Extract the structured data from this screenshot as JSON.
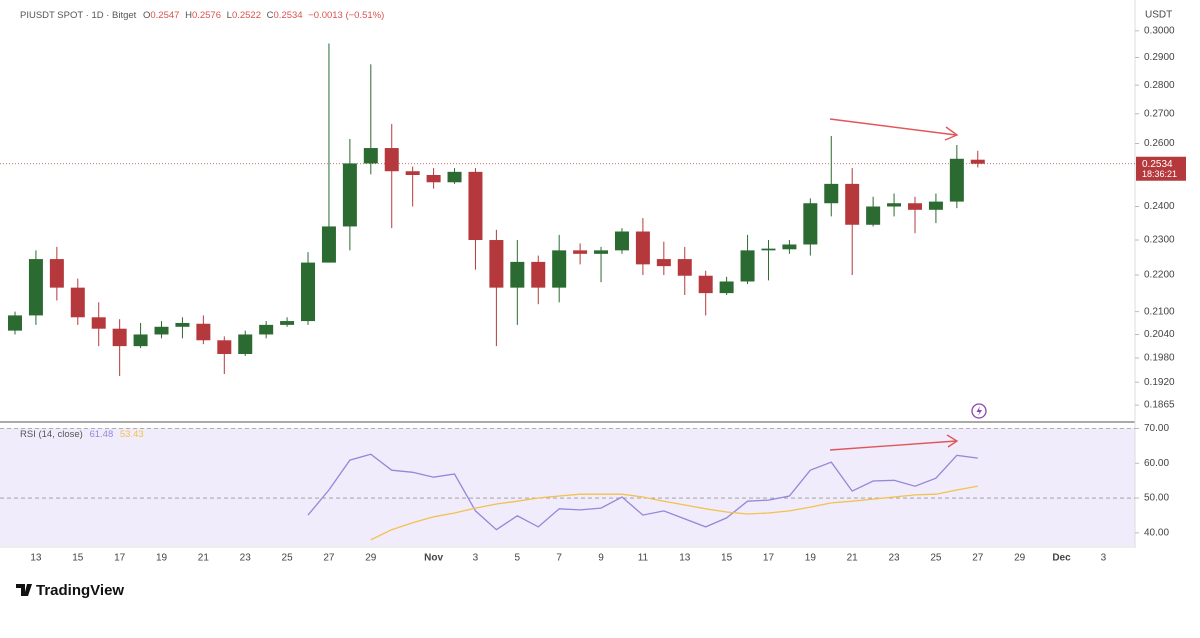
{
  "chart_data": [
    {
      "type": "candlestick",
      "title": "PIUSDT SPOT · 1D · Bitget",
      "ohlc_labels": [
        "O",
        "H",
        "L",
        "C"
      ],
      "change": "−0.0013 (−0.51%)",
      "countdown": "18:36:21",
      "y_axis_label": "USDT",
      "up_color": "#2b6a30",
      "down_color": "#b5393c",
      "log_scale": true,
      "ylim": [
        0.183,
        0.31
      ],
      "yticks": [
        {
          "value": 0.3,
          "label": "0.3000"
        },
        {
          "value": 0.29,
          "label": "0.2900"
        },
        {
          "value": 0.28,
          "label": "0.2800"
        },
        {
          "value": 0.27,
          "label": "0.2700"
        },
        {
          "value": 0.26,
          "label": "0.2600"
        },
        {
          "value": 0.24,
          "label": "0.2400"
        },
        {
          "value": 0.23,
          "label": "0.2300"
        },
        {
          "value": 0.22,
          "label": "0.2200"
        },
        {
          "value": 0.21,
          "label": "0.2100"
        },
        {
          "value": 0.204,
          "label": "0.2040"
        },
        {
          "value": 0.198,
          "label": "0.1980"
        },
        {
          "value": 0.192,
          "label": "0.1920"
        },
        {
          "value": 0.1865,
          "label": "0.1865"
        }
      ],
      "categories": [
        null,
        "13",
        null,
        "15",
        null,
        "17",
        null,
        "19",
        null,
        "21",
        null,
        "23",
        null,
        "25",
        null,
        "27",
        null,
        "29",
        null,
        null,
        "Nov",
        null,
        "3",
        null,
        "5",
        null,
        "7",
        null,
        "9",
        null,
        "11",
        null,
        "13",
        null,
        "15",
        null,
        "17",
        null,
        "19",
        null,
        "21",
        null,
        "23",
        null,
        "25",
        null,
        "27",
        null,
        "29",
        null,
        "Dec",
        null,
        "3"
      ],
      "open": [
        0.205,
        0.209,
        0.2245,
        0.2165,
        0.2085,
        0.2055,
        0.201,
        0.204,
        0.206,
        0.2068,
        0.2025,
        0.199,
        0.204,
        0.2065,
        0.2075,
        0.2235,
        0.234,
        0.2535,
        0.2585,
        0.251,
        0.2498,
        0.2475,
        0.2508,
        0.23,
        0.2165,
        0.2237,
        0.2165,
        0.227,
        0.226,
        0.227,
        0.2325,
        0.2245,
        0.2245,
        0.2198,
        0.215,
        0.2182,
        0.227,
        0.2273,
        0.2287,
        0.241,
        0.247,
        0.2345,
        0.24,
        0.241,
        0.239,
        0.2415,
        0.2547,
        null,
        null,
        null,
        null,
        null,
        null
      ],
      "high": [
        0.21,
        0.227,
        0.228,
        0.219,
        0.2125,
        0.208,
        0.207,
        0.2075,
        0.2085,
        0.209,
        0.2035,
        0.205,
        0.2075,
        0.2085,
        0.2265,
        0.2952,
        0.2615,
        0.2875,
        0.2665,
        0.2525,
        0.252,
        0.252,
        0.252,
        0.233,
        0.23,
        0.2255,
        0.2315,
        0.229,
        0.228,
        0.2335,
        0.2365,
        0.2295,
        0.228,
        0.2212,
        0.2195,
        0.2315,
        0.23,
        0.23,
        0.2425,
        0.2625,
        0.252,
        0.243,
        0.244,
        0.243,
        0.244,
        0.2595,
        0.2576,
        null,
        null,
        null,
        null,
        null,
        null
      ],
      "low": [
        0.204,
        0.2065,
        0.213,
        0.2065,
        0.201,
        0.1935,
        0.2005,
        0.203,
        0.203,
        0.2015,
        0.194,
        0.1985,
        0.203,
        0.206,
        0.2065,
        0.2235,
        0.227,
        0.25,
        0.2335,
        0.24,
        0.2455,
        0.247,
        0.2215,
        0.201,
        0.2065,
        0.212,
        0.2125,
        0.223,
        0.218,
        0.226,
        0.22,
        0.22,
        0.2145,
        0.209,
        0.2145,
        0.2175,
        0.2185,
        0.226,
        0.2255,
        0.237,
        0.22,
        0.234,
        0.237,
        0.232,
        0.235,
        0.2395,
        0.2522,
        null,
        null,
        null,
        null,
        null,
        null
      ],
      "close": [
        0.209,
        0.2245,
        0.2165,
        0.2085,
        0.2055,
        0.201,
        0.204,
        0.206,
        0.207,
        0.2025,
        0.199,
        0.204,
        0.2065,
        0.2075,
        0.2235,
        0.234,
        0.2535,
        0.2585,
        0.251,
        0.2498,
        0.2475,
        0.2508,
        0.23,
        0.2165,
        0.2237,
        0.2165,
        0.227,
        0.226,
        0.227,
        0.2325,
        0.223,
        0.2225,
        0.2198,
        0.215,
        0.2182,
        0.227,
        0.2275,
        0.2287,
        0.241,
        0.247,
        0.2345,
        0.24,
        0.241,
        0.239,
        0.2415,
        0.255,
        0.2534,
        null,
        null,
        null,
        null,
        null,
        null
      ]
    },
    {
      "type": "line",
      "title": "RSI (14, close)",
      "ylim": [
        36.5,
        71
      ],
      "yticks": [
        {
          "value": 70,
          "label": "70.00"
        },
        {
          "value": 60,
          "label": "60.00"
        },
        {
          "value": 50,
          "label": "50.00"
        },
        {
          "value": 40,
          "label": "40.00"
        }
      ],
      "series": [
        {
          "color": "#9488d8",
          "values": [
            null,
            null,
            null,
            null,
            null,
            null,
            null,
            null,
            null,
            null,
            null,
            null,
            null,
            null,
            45.1,
            52.3,
            60.9,
            62.6,
            58.0,
            57.4,
            56.0,
            56.9,
            46.3,
            40.9,
            44.9,
            41.7,
            46.9,
            46.6,
            47.1,
            50.3,
            45.1,
            46.3,
            44.0,
            41.7,
            44.3,
            49.1,
            49.4,
            50.6,
            58.0,
            60.3,
            52.0,
            54.9,
            55.1,
            53.4,
            55.7,
            62.3,
            61.48,
            null,
            null,
            null,
            null,
            null,
            null
          ]
        },
        {
          "color": "#f2c14e",
          "values": [
            null,
            null,
            null,
            null,
            null,
            null,
            null,
            null,
            null,
            null,
            null,
            null,
            null,
            null,
            null,
            null,
            null,
            38.0,
            40.9,
            42.9,
            44.6,
            45.7,
            47.1,
            48.3,
            49.1,
            50.0,
            50.6,
            51.1,
            51.1,
            51.1,
            50.3,
            49.1,
            48.0,
            46.9,
            46.0,
            45.4,
            45.7,
            46.3,
            47.4,
            48.6,
            49.1,
            49.7,
            50.3,
            50.9,
            51.1,
            52.3,
            53.43,
            null,
            null,
            null,
            null,
            null,
            null
          ]
        }
      ]
    }
  ],
  "brand": "TradingView"
}
